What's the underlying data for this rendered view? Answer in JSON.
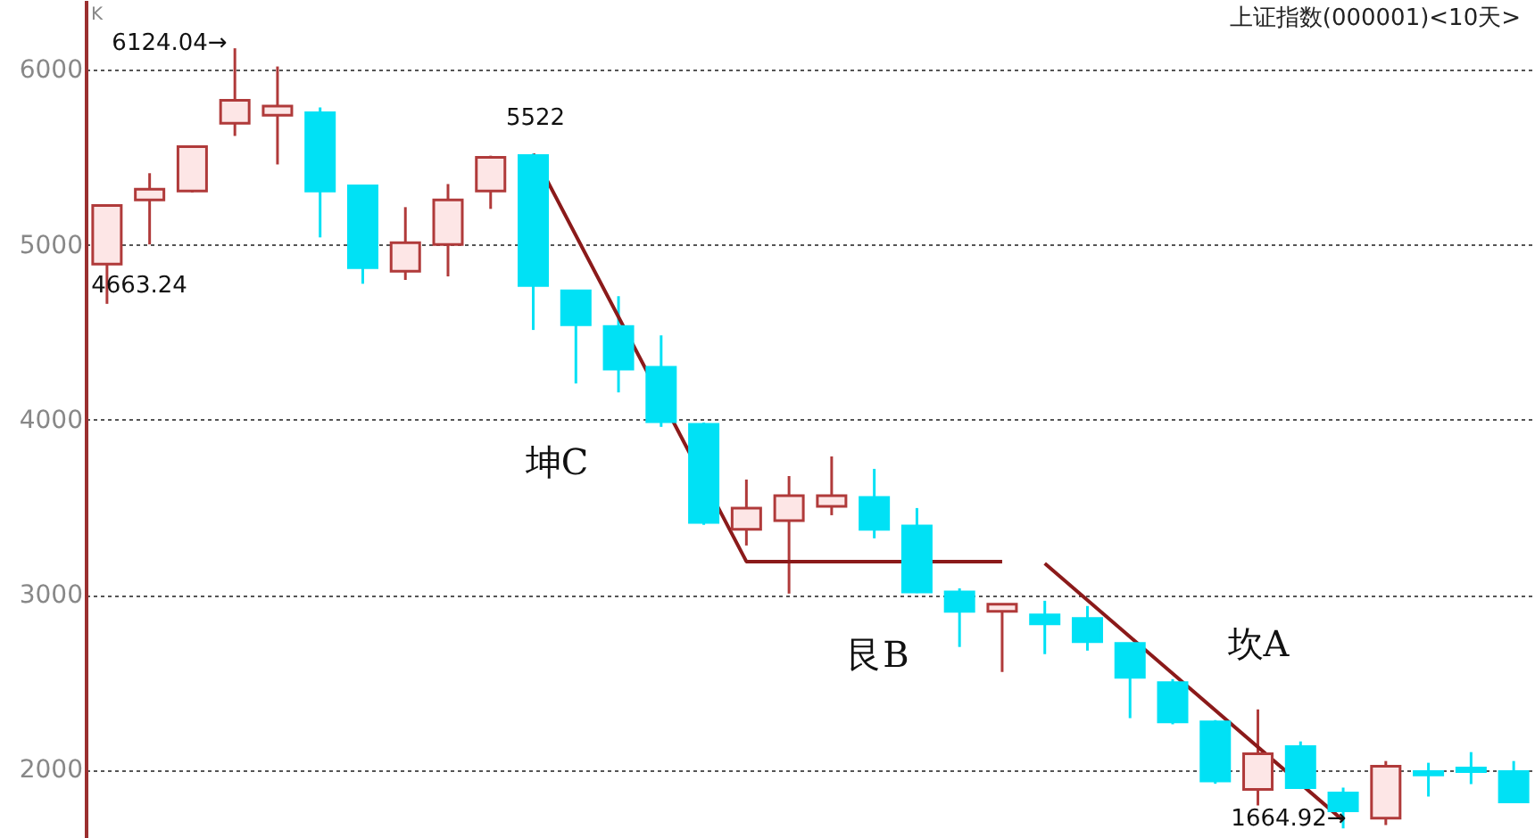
{
  "chart_data": {
    "type": "candlestick",
    "title": "上证指数(000001)<10天>",
    "ylabel": "K",
    "categories": [
      null,
      null,
      null,
      null,
      null,
      null,
      null,
      null,
      null,
      null,
      null,
      null,
      null,
      null,
      null,
      null,
      null,
      null,
      null,
      null,
      null,
      null,
      null,
      null,
      null,
      null,
      null,
      null,
      null,
      null,
      null,
      null,
      null,
      null
    ],
    "ohlc": [
      [
        4890,
        5226,
        4663.24,
        5226
      ],
      [
        5257,
        5410,
        5003,
        5318
      ],
      [
        5308,
        5562,
        5300,
        5562
      ],
      [
        5695,
        6124.04,
        5623,
        5827
      ],
      [
        5742,
        6020,
        5460,
        5793
      ],
      [
        5756,
        5786,
        5043,
        5308
      ],
      [
        5338,
        5338,
        4778,
        4870
      ],
      [
        4850,
        5216,
        4800,
        5013
      ],
      [
        5003,
        5348,
        4820,
        5257
      ],
      [
        5308,
        5510,
        5206,
        5501
      ],
      [
        5511,
        5522,
        4514,
        4768
      ],
      [
        4738,
        4738,
        4208,
        4544
      ],
      [
        4534,
        4707,
        4157,
        4290
      ],
      [
        4300,
        4483,
        3960,
        3990
      ],
      [
        3974,
        3985,
        3400,
        3414
      ],
      [
        3374,
        3659,
        3282,
        3496
      ],
      [
        3424,
        3679,
        3007,
        3567
      ],
      [
        3506,
        3791,
        3455,
        3567
      ],
      [
        3557,
        3720,
        3323,
        3374
      ],
      [
        3394,
        3496,
        3010,
        3017
      ],
      [
        3017,
        3037,
        2702,
        2905
      ],
      [
        2905,
        2946,
        2559,
        2946
      ],
      [
        2885,
        2966,
        2661,
        2834
      ],
      [
        2865,
        2936,
        2681,
        2732
      ],
      [
        2722,
        2722,
        2295,
        2529
      ],
      [
        2498,
        2518,
        2260,
        2274
      ],
      [
        2274,
        2284,
        1920,
        1936
      ],
      [
        1888,
        2345,
        1796,
        2091
      ],
      [
        2132,
        2162,
        1890,
        1898
      ],
      [
        1867,
        1898,
        1664.92,
        1765
      ],
      [
        1724,
        2050,
        1684,
        2020
      ],
      [
        1990,
        2040,
        1847,
        1970
      ],
      [
        2010,
        2101,
        1918,
        1990
      ],
      [
        1990,
        2050,
        1810,
        1817
      ]
    ],
    "colors": [
      "#b03a3a",
      "#b03a3a",
      "#b03a3a",
      "#b03a3a",
      "#b03a3a",
      "#00e1f5",
      "#00e1f5",
      "#b03a3a",
      "#b03a3a",
      "#b03a3a",
      "#00e1f5",
      "#00e1f5",
      "#00e1f5",
      "#00e1f5",
      "#00e1f5",
      "#b03a3a",
      "#b03a3a",
      "#b03a3a",
      "#00e1f5",
      "#00e1f5",
      "#00e1f5",
      "#b03a3a",
      "#00e1f5",
      "#00e1f5",
      "#00e1f5",
      "#00e1f5",
      "#00e1f5",
      "#b03a3a",
      "#00e1f5",
      "#00e1f5",
      "#b03a3a",
      "#00e1f5",
      "#00e1f5",
      "#00e1f5"
    ],
    "series": [
      {
        "type": "line",
        "color": "#8b1a1a",
        "values": [
          null,
          null,
          null,
          null,
          null,
          null,
          null,
          null,
          null,
          null,
          5520,
          null,
          null,
          null,
          null,
          3190,
          null,
          null,
          null,
          null,
          null,
          3190,
          null,
          null,
          null,
          null,
          null,
          null,
          null,
          null,
          null,
          null,
          null,
          null
        ]
      },
      {
        "type": "line",
        "color": "#8b1a1a",
        "values": [
          null,
          null,
          null,
          null,
          null,
          null,
          null,
          null,
          null,
          null,
          null,
          null,
          null,
          null,
          null,
          null,
          null,
          null,
          null,
          null,
          null,
          null,
          3180,
          null,
          null,
          null,
          null,
          null,
          null,
          1710,
          null,
          null,
          null,
          null
        ]
      }
    ],
    "ylim": [
      1610,
      6400
    ],
    "yticks": [
      2000,
      3000,
      4000,
      5000,
      6000
    ],
    "grid": "y",
    "tick_labels": "y",
    "annotations": [
      "6124.04→",
      "4663.24",
      "1664.92→",
      "5522",
      "坤C",
      "艮B",
      "坎A"
    ]
  }
}
